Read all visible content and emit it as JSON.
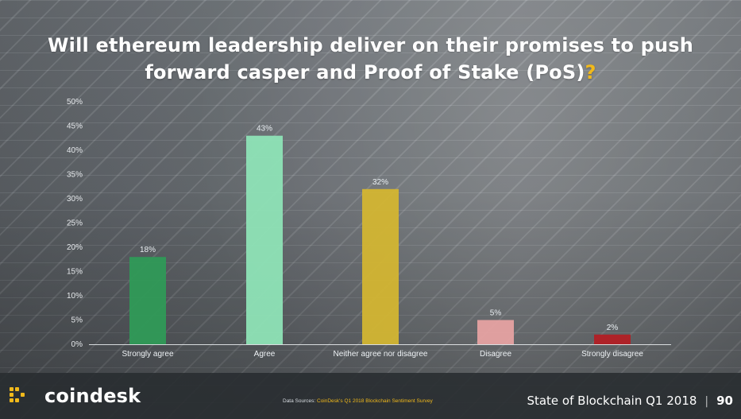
{
  "header": {
    "title_main": "Will ethereum leadership deliver on their promises to push forward casper and Proof of Stake (PoS)",
    "title_qmark": "?"
  },
  "chart_data": {
    "type": "bar",
    "categories": [
      "Strongly agree",
      "Agree",
      "Neither agree nor disagree",
      "Disagree",
      "Strongly disagree"
    ],
    "values": [
      18,
      43,
      32,
      5,
      2
    ],
    "value_labels": [
      "18%",
      "43%",
      "32%",
      "5%",
      "2%"
    ],
    "ylim": [
      0,
      50
    ],
    "yticks": [
      0,
      5,
      10,
      15,
      20,
      25,
      30,
      35,
      40,
      45,
      50
    ],
    "ytick_labels": [
      "0%",
      "5%",
      "10%",
      "15%",
      "20%",
      "25%",
      "30%",
      "35%",
      "40%",
      "45%",
      "50%"
    ],
    "title": "",
    "xlabel": "",
    "ylabel": "",
    "colors": [
      "#2f9a57",
      "#8ee3b6",
      "#d3b532",
      "#e6a2a2",
      "#b21f25"
    ],
    "grid": false
  },
  "footer": {
    "brand_name": "coindesk",
    "source_prefix": "Data Sources: ",
    "source_link": "CoinDesk's Q1 2018 Blockchain Sentiment Survey",
    "report_title": "State of Blockchain Q1 2018",
    "divider": "|",
    "page_number": "90"
  },
  "brand_colors": {
    "accent": "#f1b91b",
    "footer_bg": "#2c3034"
  }
}
